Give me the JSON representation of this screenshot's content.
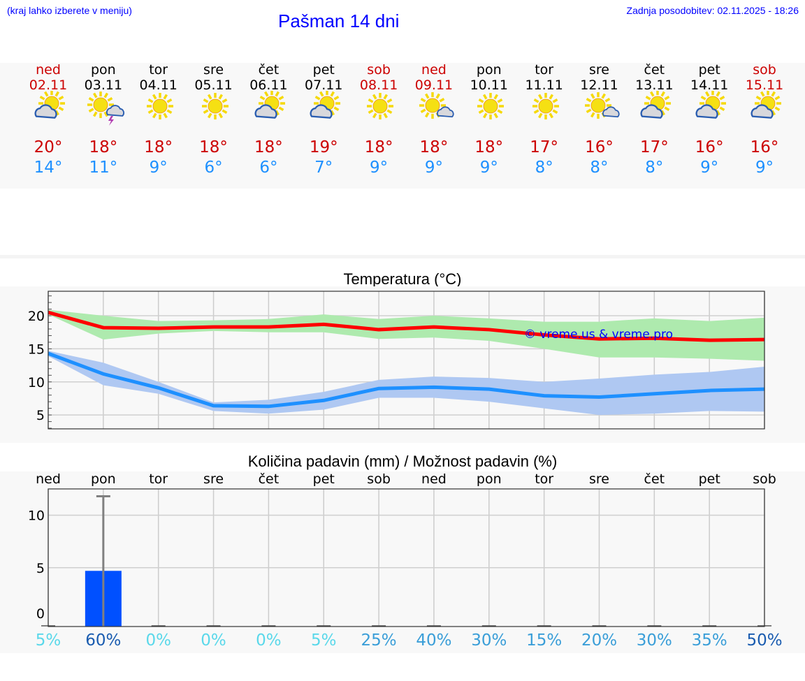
{
  "header": {
    "hint": "(kraj lahko izberete v meniju)",
    "title": "Pašman 14 dni",
    "updated": "Zadnja posodobitev: 02.11.2025 - 18:26"
  },
  "days": [
    {
      "name": "ned",
      "date": "02.11",
      "icon": "partly-cloudy",
      "max": "20°",
      "min": "14°",
      "weekend": true
    },
    {
      "name": "pon",
      "date": "03.11",
      "icon": "thunderstorm",
      "max": "18°",
      "min": "11°",
      "weekend": false
    },
    {
      "name": "tor",
      "date": "04.11",
      "icon": "sunny",
      "max": "18°",
      "min": "9°",
      "weekend": false
    },
    {
      "name": "sre",
      "date": "05.11",
      "icon": "sunny",
      "max": "18°",
      "min": "6°",
      "weekend": false
    },
    {
      "name": "čet",
      "date": "06.11",
      "icon": "partly-cloudy",
      "max": "18°",
      "min": "6°",
      "weekend": false
    },
    {
      "name": "pet",
      "date": "07.11",
      "icon": "partly-cloudy",
      "max": "19°",
      "min": "7°",
      "weekend": false
    },
    {
      "name": "sob",
      "date": "08.11",
      "icon": "sunny",
      "max": "18°",
      "min": "9°",
      "weekend": true
    },
    {
      "name": "ned",
      "date": "09.11",
      "icon": "mostly-sunny",
      "max": "18°",
      "min": "9°",
      "weekend": true
    },
    {
      "name": "pon",
      "date": "10.11",
      "icon": "sunny",
      "max": "18°",
      "min": "9°",
      "weekend": false
    },
    {
      "name": "tor",
      "date": "11.11",
      "icon": "sunny",
      "max": "17°",
      "min": "8°",
      "weekend": false
    },
    {
      "name": "sre",
      "date": "12.11",
      "icon": "mostly-sunny",
      "max": "16°",
      "min": "8°",
      "weekend": false
    },
    {
      "name": "čet",
      "date": "13.11",
      "icon": "partly-cloudy",
      "max": "17°",
      "min": "8°",
      "weekend": false
    },
    {
      "name": "pet",
      "date": "14.11",
      "icon": "partly-cloudy",
      "max": "16°",
      "min": "9°",
      "weekend": false
    },
    {
      "name": "sob",
      "date": "15.11",
      "icon": "partly-cloudy",
      "max": "16°",
      "min": "9°",
      "weekend": true
    }
  ],
  "colors": {
    "max": "#ff0000",
    "min": "#1e90ff",
    "max_band": "#aeeaae",
    "min_band": "#afc8f2",
    "bar": "#0050ff",
    "pct_low": "#5ad8ea",
    "pct_mid": "#3a9ed8",
    "pct_high": "#1a5cb0"
  },
  "chart_data": [
    {
      "type": "line",
      "title": "Temperatura (°C)",
      "watermark": "© vreme.us & vreme.pro",
      "ylim": [
        2.9,
        23.7
      ],
      "yticks": [
        "5",
        "10",
        "15",
        "20"
      ],
      "ytick_values": [
        5,
        10,
        15,
        20
      ],
      "series": [
        {
          "name": "max",
          "values": [
            20.5,
            18.2,
            18.1,
            18.3,
            18.3,
            18.7,
            17.9,
            18.3,
            17.9,
            17.1,
            16.5,
            16.6,
            16.3,
            16.4
          ],
          "upper": [
            20.9,
            20.0,
            19.2,
            19.3,
            19.5,
            20.2,
            19.5,
            20.0,
            19.6,
            19.1,
            19.1,
            19.6,
            19.2,
            19.7
          ],
          "lower": [
            20.2,
            16.4,
            17.3,
            17.7,
            17.5,
            17.5,
            16.5,
            16.7,
            16.2,
            15.0,
            13.7,
            13.7,
            13.5,
            13.2
          ]
        },
        {
          "name": "min",
          "values": [
            14.3,
            11.2,
            9.1,
            6.4,
            6.3,
            7.2,
            9.0,
            9.2,
            8.9,
            7.9,
            7.7,
            8.2,
            8.7,
            8.9
          ],
          "upper": [
            14.7,
            12.9,
            10.0,
            6.9,
            7.3,
            8.5,
            10.3,
            10.8,
            10.6,
            10.0,
            10.5,
            11.1,
            11.5,
            12.3
          ],
          "lower": [
            13.9,
            9.5,
            8.2,
            5.6,
            5.2,
            5.8,
            7.6,
            7.6,
            7.0,
            6.0,
            5.0,
            5.2,
            5.6,
            5.5
          ]
        }
      ]
    },
    {
      "type": "bar",
      "title": "Količina padavin (mm) / Možnost padavin (%)",
      "categories": [
        "ned",
        "pon",
        "tor",
        "sre",
        "čet",
        "pet",
        "sob",
        "ned",
        "pon",
        "tor",
        "sre",
        "čet",
        "pet",
        "sob"
      ],
      "values": [
        0,
        4.7,
        0,
        0,
        0,
        0,
        0,
        0,
        0,
        0,
        0,
        0,
        0,
        0
      ],
      "error_max": [
        0,
        11.8,
        0,
        0,
        0,
        0,
        0,
        0,
        0,
        0,
        0,
        0,
        0,
        0
      ],
      "probability": [
        "5%",
        "60%",
        "0%",
        "0%",
        "0%",
        "5%",
        "25%",
        "40%",
        "30%",
        "15%",
        "20%",
        "30%",
        "35%",
        "50%"
      ],
      "ylim": [
        -0.6,
        12.5
      ],
      "yticks": [
        "0",
        "5",
        "10"
      ],
      "ytick_values": [
        0,
        5,
        10
      ]
    }
  ]
}
